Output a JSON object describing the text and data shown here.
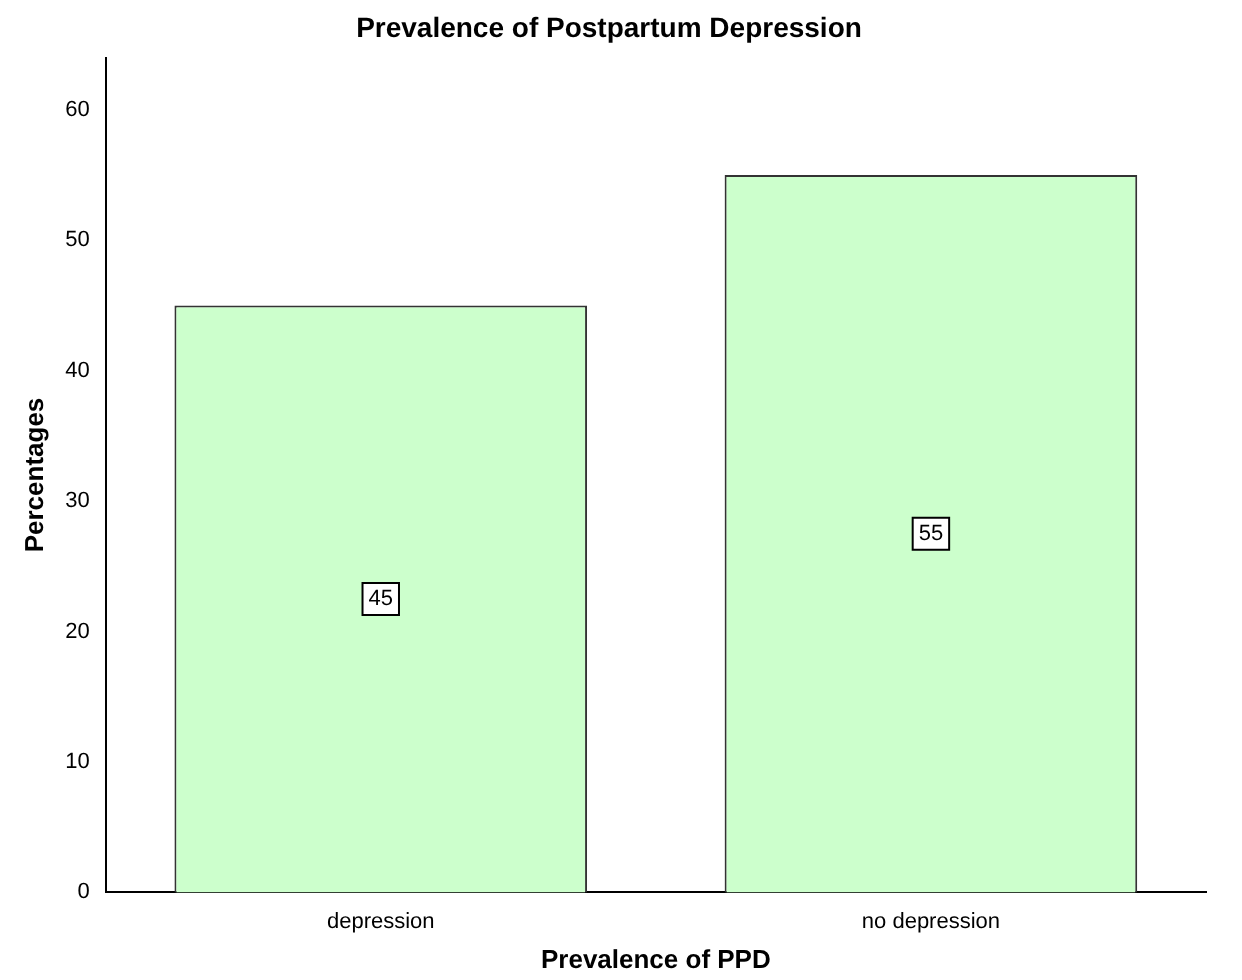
{
  "chart_data": {
    "type": "bar",
    "title": "Prevalence of Postpartum Depression",
    "xlabel": "Prevalence of PPD",
    "ylabel": "Percentages",
    "categories": [
      "depression",
      "no depression"
    ],
    "values": [
      45,
      55
    ],
    "color": "#ccffcc",
    "ylim": [
      0,
      64
    ],
    "yticks": [
      0,
      10,
      20,
      30,
      40,
      50,
      60
    ],
    "grid": false,
    "legend": false,
    "data_labels": true
  }
}
